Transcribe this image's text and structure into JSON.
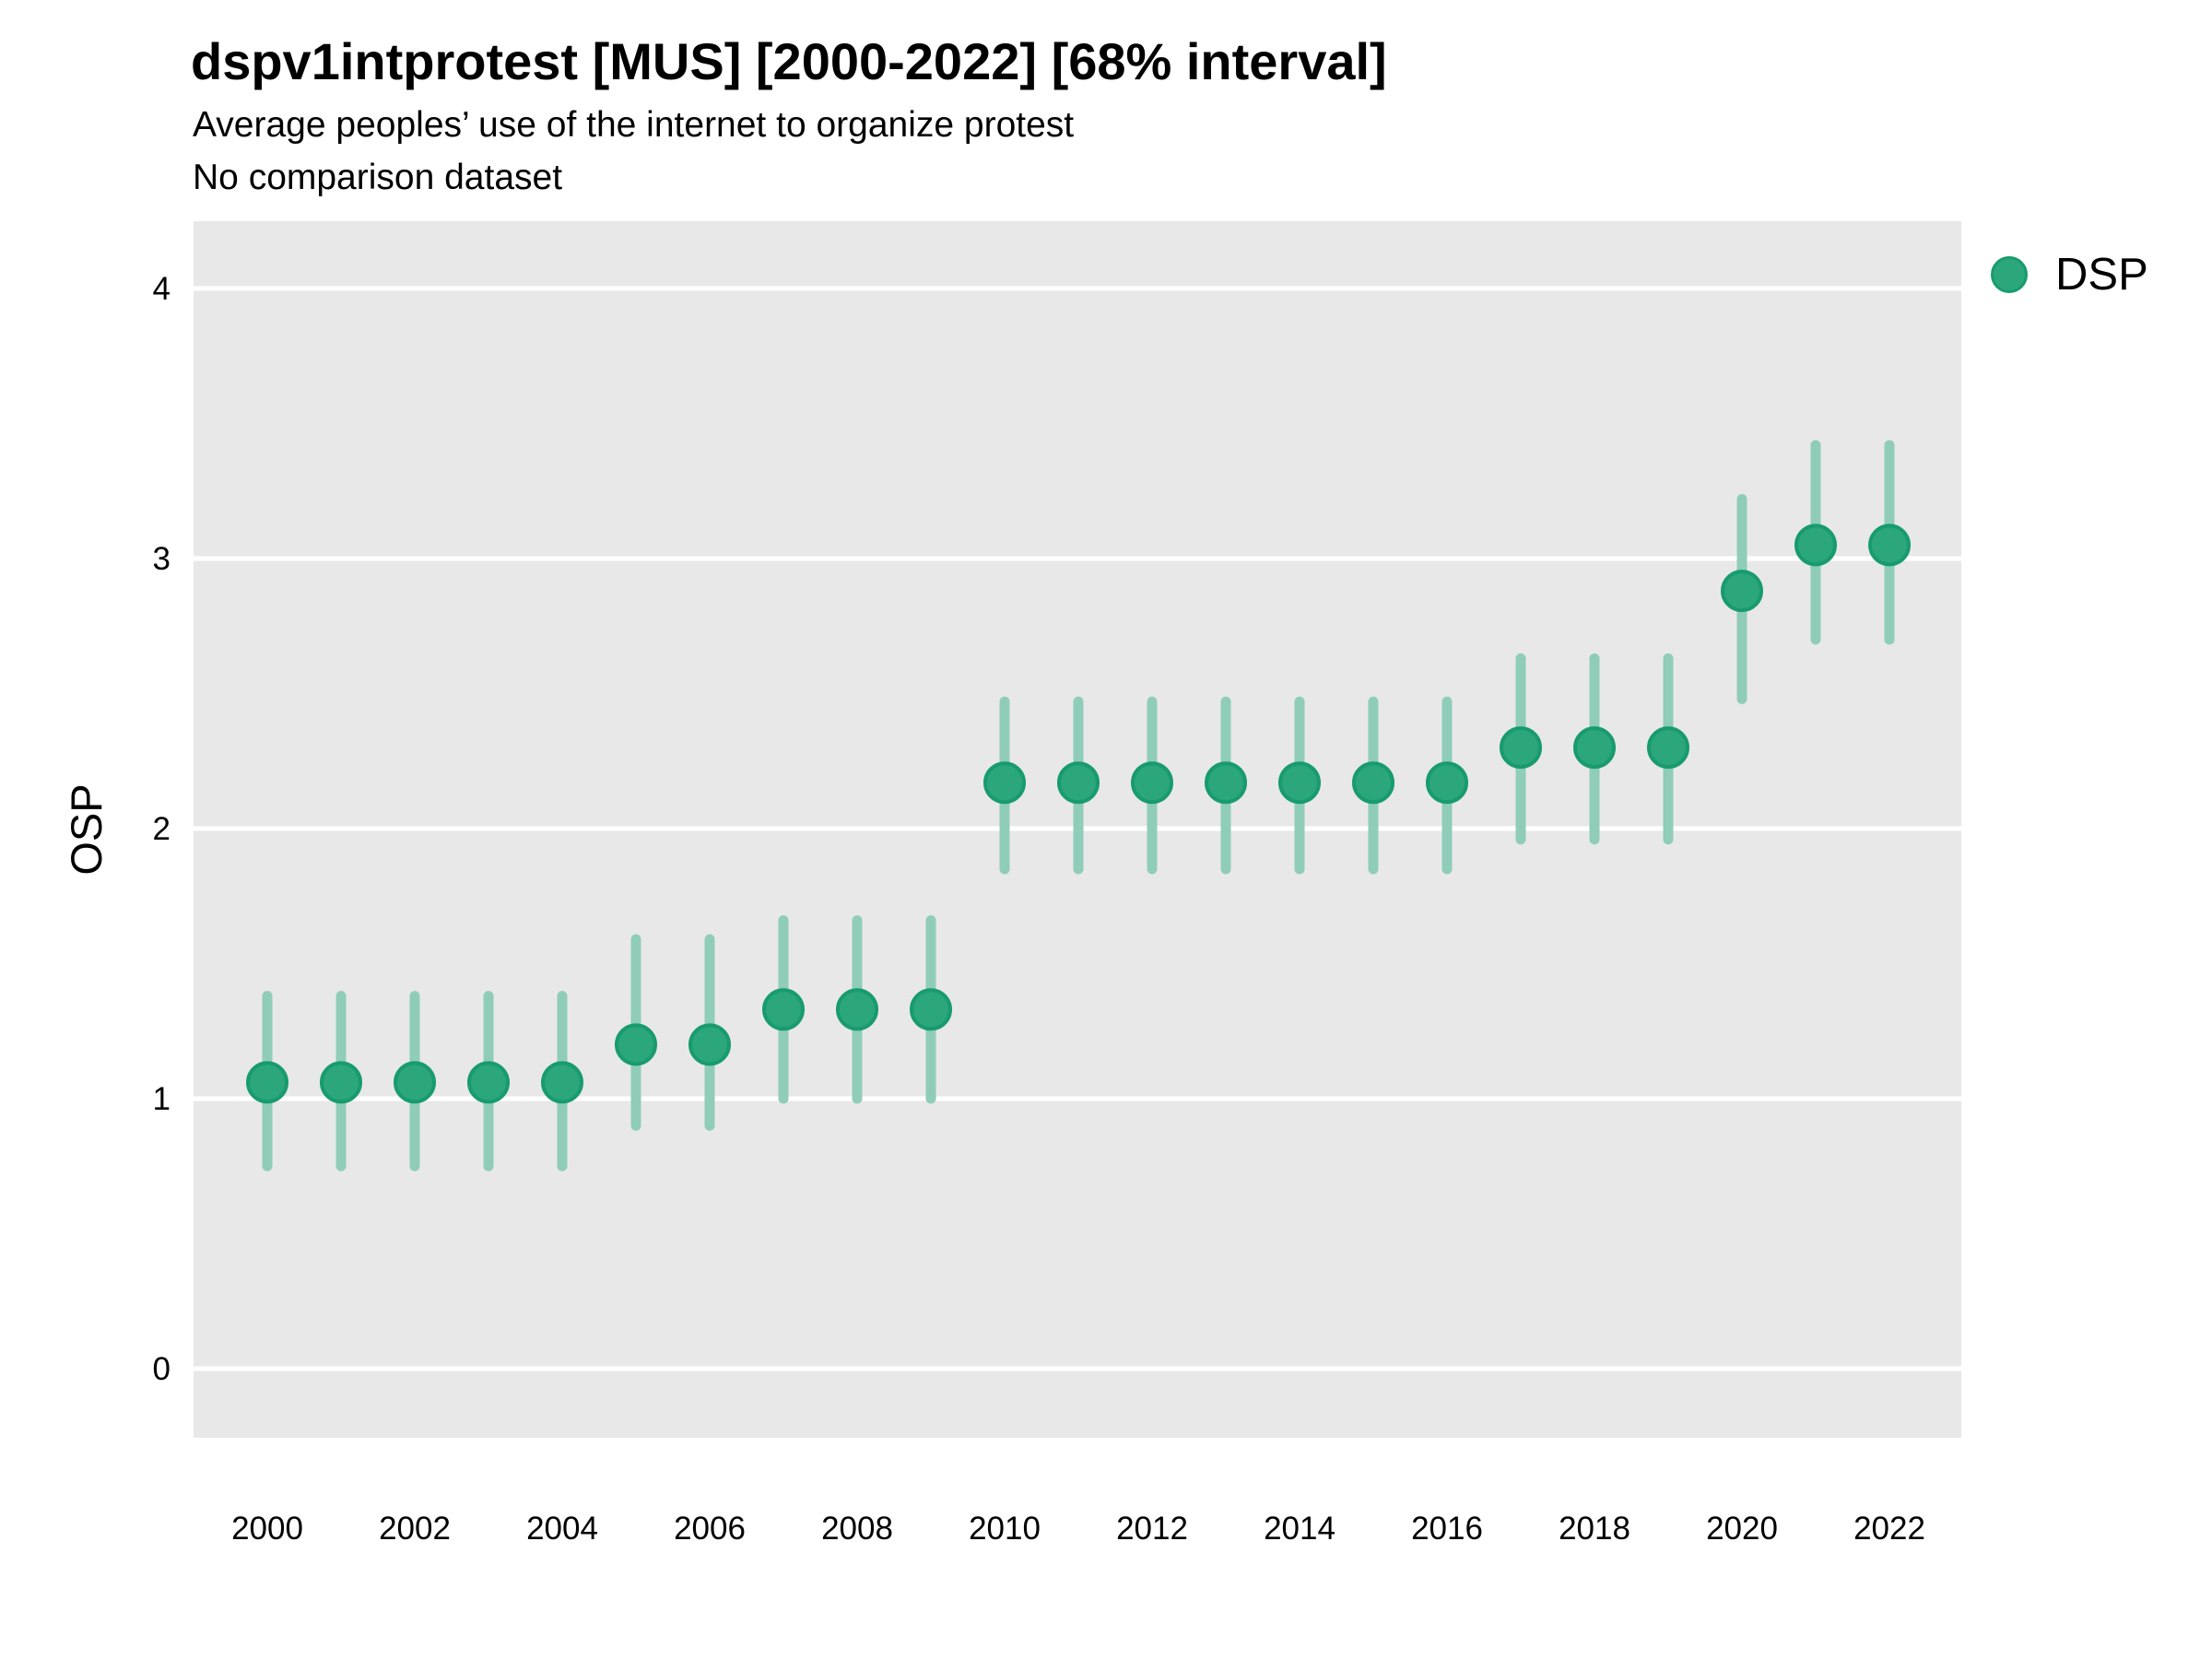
{
  "chart_data": {
    "type": "scatter",
    "title": "dspv1intprotest [MUS] [2000-2022] [68% interval]",
    "subtitle": "Average peoples’ use of the internet to organize protest",
    "note": "No comparison dataset",
    "ylabel": "OSP",
    "xlabel": "",
    "ylim": [
      -0.26,
      4.25
    ],
    "yticks": [
      0,
      1,
      2,
      3,
      4
    ],
    "xticks": [
      2000,
      2002,
      2004,
      2006,
      2008,
      2010,
      2012,
      2014,
      2016,
      2018,
      2020,
      2022
    ],
    "grid": "major-horizontal-only",
    "legend_position": "right",
    "interval_label": "68% interval",
    "series": [
      {
        "name": "DSP",
        "x": [
          2000,
          2001,
          2002,
          2003,
          2004,
          2005,
          2006,
          2007,
          2008,
          2009,
          2010,
          2011,
          2012,
          2013,
          2014,
          2015,
          2016,
          2017,
          2018,
          2019,
          2020,
          2021,
          2022
        ],
        "y": [
          1.06,
          1.06,
          1.06,
          1.06,
          1.06,
          1.2,
          1.2,
          1.33,
          1.33,
          1.33,
          2.17,
          2.17,
          2.17,
          2.17,
          2.17,
          2.17,
          2.17,
          2.3,
          2.3,
          2.3,
          2.88,
          3.05,
          3.05
        ],
        "lo": [
          0.75,
          0.75,
          0.75,
          0.75,
          0.75,
          0.9,
          0.9,
          1.0,
          1.0,
          1.0,
          1.85,
          1.85,
          1.85,
          1.85,
          1.85,
          1.85,
          1.85,
          1.96,
          1.96,
          1.96,
          2.48,
          2.7,
          2.7
        ],
        "hi": [
          1.38,
          1.38,
          1.38,
          1.38,
          1.38,
          1.59,
          1.59,
          1.66,
          1.66,
          1.66,
          2.47,
          2.47,
          2.47,
          2.47,
          2.47,
          2.47,
          2.47,
          2.63,
          2.63,
          2.63,
          3.22,
          3.42,
          3.42
        ]
      }
    ],
    "colors": {
      "point_fill": "#2BA77B",
      "point_stroke": "#189B6E",
      "interval_bar": "#8FCDB9",
      "panel_background": "#E8E8E8",
      "gridline": "#FFFFFF",
      "text": "#000000"
    },
    "legend": {
      "items": [
        {
          "label": "DSP",
          "color": "#2BA77B"
        }
      ]
    }
  }
}
